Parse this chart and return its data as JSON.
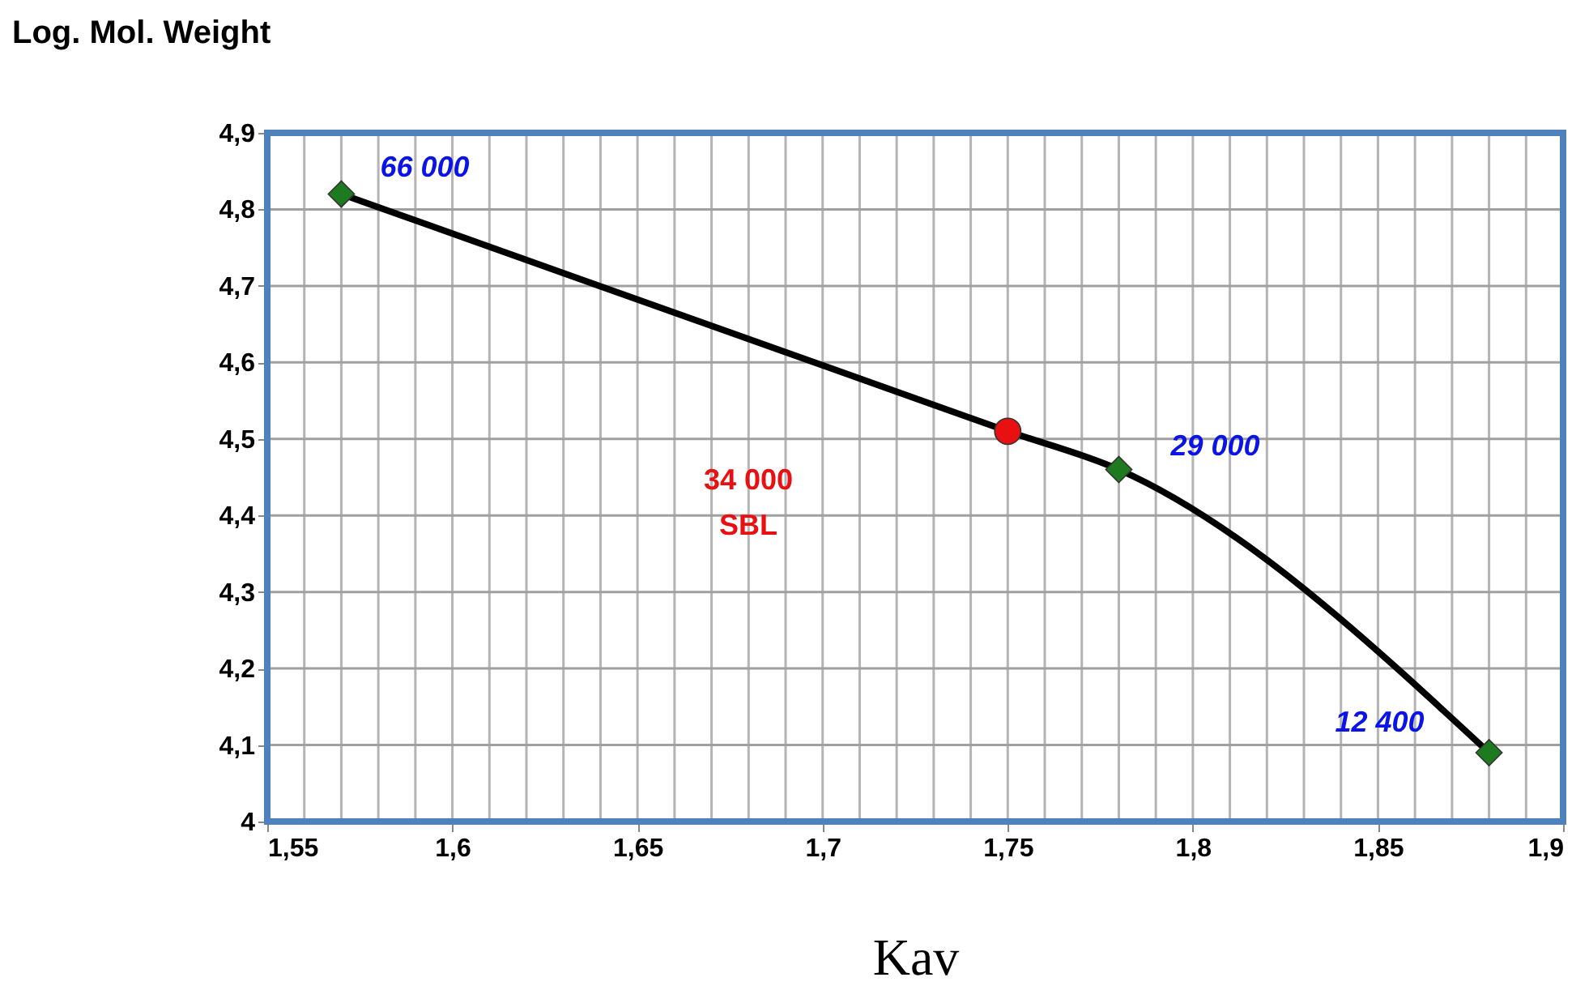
{
  "chart_data": {
    "type": "line",
    "xlabel": "Kav",
    "ylabel": "Log. Mol. Weight",
    "series": [
      {
        "color": "#000000",
        "marker": "none",
        "line_style": "solid",
        "x": [
          1.57,
          1.75,
          1.78,
          1.88
        ],
        "values": [
          4.82,
          4.51,
          4.46,
          4.09
        ]
      },
      {
        "type": "scatter",
        "color": "#1e7a1e",
        "marker": "diamond",
        "x": [
          1.57,
          1.78,
          1.88
        ],
        "values": [
          4.82,
          4.46,
          4.09
        ]
      },
      {
        "type": "scatter",
        "color": "#e81010",
        "marker": "circle",
        "x": [
          1.75
        ],
        "values": [
          4.51
        ]
      }
    ],
    "annotations": [
      {
        "text": "66 000",
        "x": 1.57,
        "y": 4.82
      },
      {
        "text": "29 000",
        "x": 1.78,
        "y": 4.46
      },
      {
        "text": "12 400",
        "x": 1.88,
        "y": 4.09
      },
      "34 000\nSBL"
    ],
    "xlim": [
      1.55,
      1.9
    ],
    "xticks": [
      {
        "value": 1.55,
        "label": "1,55"
      },
      {
        "value": 1.56,
        "label": null
      },
      {
        "value": 1.57,
        "label": null
      },
      {
        "value": 1.58,
        "label": null
      },
      {
        "value": 1.59,
        "label": null
      },
      {
        "value": 1.6,
        "label": "1,6"
      },
      {
        "value": 1.61,
        "label": null
      },
      {
        "value": 1.62,
        "label": null
      },
      {
        "value": 1.63,
        "label": null
      },
      {
        "value": 1.64,
        "label": null
      },
      {
        "value": 1.65,
        "label": "1,65"
      },
      {
        "value": 1.66,
        "label": null
      },
      {
        "value": 1.67,
        "label": null
      },
      {
        "value": 1.68,
        "label": null
      },
      {
        "value": 1.69,
        "label": null
      },
      {
        "value": 1.7,
        "label": "1,7"
      },
      {
        "value": 1.71,
        "label": null
      },
      {
        "value": 1.72,
        "label": null
      },
      {
        "value": 1.73,
        "label": null
      },
      {
        "value": 1.74,
        "label": null
      },
      {
        "value": 1.75,
        "label": "1,75"
      },
      {
        "value": 1.76,
        "label": null
      },
      {
        "value": 1.77,
        "label": null
      },
      {
        "value": 1.78,
        "label": null
      },
      {
        "value": 1.79,
        "label": null
      },
      {
        "value": 1.8,
        "label": "1,8"
      },
      {
        "value": 1.81,
        "label": null
      },
      {
        "value": 1.82,
        "label": null
      },
      {
        "value": 1.83,
        "label": null
      },
      {
        "value": 1.84,
        "label": null
      },
      {
        "value": 1.85,
        "label": "1,85"
      },
      {
        "value": 1.86,
        "label": null
      },
      {
        "value": 1.87,
        "label": null
      },
      {
        "value": 1.88,
        "label": null
      },
      {
        "value": 1.89,
        "label": null
      },
      {
        "value": 1.9,
        "label": "1,9"
      }
    ],
    "ylim": [
      4.0,
      4.9
    ],
    "yticks": [
      4,
      {
        "value": 4.1,
        "label": "4,1"
      },
      {
        "value": 4.2,
        "label": "4,2"
      },
      {
        "value": 4.3,
        "label": "4,3"
      },
      {
        "value": 4.4,
        "label": "4,4"
      },
      {
        "value": 4.5,
        "label": "4,5"
      },
      {
        "value": 4.6,
        "label": "4,6"
      },
      {
        "value": 4.7,
        "label": "4,7"
      },
      {
        "value": 4.8,
        "label": "4,8"
      },
      {
        "value": 4.9,
        "label": "4,9"
      }
    ],
    "grid": true
  }
}
